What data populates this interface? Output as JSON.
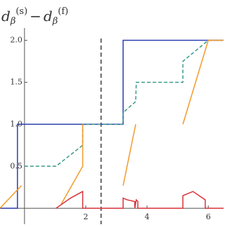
{
  "chart_data": {
    "type": "line",
    "title_parts": [
      "d",
      "β",
      "(s)",
      "−",
      "d",
      "β",
      "(f)"
    ],
    "xlim": [
      -0.8,
      6.5
    ],
    "ylim": [
      -0.19,
      2.48
    ],
    "xticks": [
      2,
      4,
      6
    ],
    "yticks": [
      0.5,
      {
        "value": 1,
        "label": "1.0"
      },
      1.5,
      {
        "value": 2,
        "label": "2.0"
      }
    ],
    "vline": 2.5,
    "series": [
      {
        "color": "#2b3fb0",
        "dash": false,
        "x": [
          -0.8,
          -0.23,
          -0.23,
          3.22,
          3.22,
          6.5
        ],
        "values": [
          0,
          0,
          1,
          1,
          2,
          2
        ]
      },
      {
        "color": "#3a9a8a",
        "dash": true,
        "x": [
          0,
          1.03,
          1.9,
          1.9,
          3.22,
          3.22,
          3.63,
          3.65,
          5.17,
          5.17,
          6.0,
          6.5
        ],
        "values": [
          0.5,
          0.5,
          0.75,
          1,
          1,
          1.14,
          1.27,
          1.5,
          1.5,
          1.75,
          2,
          2
        ]
      },
      {
        "color": "#f39a2c",
        "dash": false,
        "x": [
          -0.8,
          -0.1,
          null,
          1.2,
          1.9,
          1.9,
          null,
          3.22,
          3.63,
          null,
          5.17,
          6.0,
          6.5
        ],
        "values": [
          0,
          0.27,
          null,
          0.05,
          0.5,
          1,
          null,
          0.27,
          1,
          null,
          1,
          2,
          2
        ]
      },
      {
        "color": "#d8343c",
        "dash": false,
        "x": [
          1.03,
          1.5,
          1.9,
          1.9,
          3.22,
          3.22,
          3.35,
          3.6,
          3.6,
          3.65,
          3.7,
          3.7,
          5.17,
          5.17,
          5.5,
          5.9,
          5.9,
          6.5
        ],
        "values": [
          0,
          0.12,
          0.2,
          0,
          0,
          0.12,
          0.1,
          0.08,
          0,
          0.1,
          0.08,
          0,
          0,
          0.15,
          0.2,
          0.1,
          0,
          0
        ]
      }
    ]
  }
}
